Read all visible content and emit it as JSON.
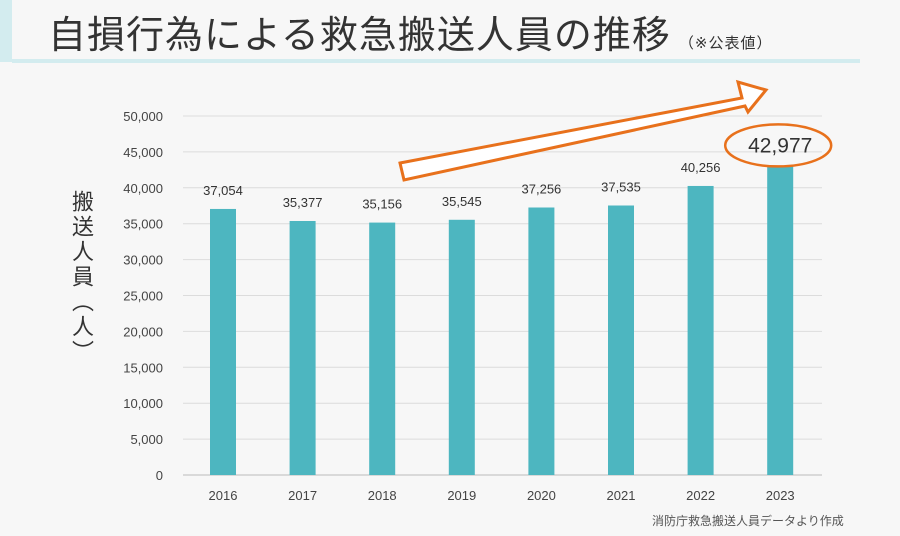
{
  "title": "自損行為による救急搬送人員の推移",
  "title_note": "（※公表値）",
  "source": "消防庁救急搬送人員データより作成",
  "chart_data": {
    "type": "bar",
    "categories": [
      "2016",
      "2017",
      "2018",
      "2019",
      "2020",
      "2021",
      "2022",
      "2023"
    ],
    "values": [
      37054,
      35377,
      35156,
      35545,
      37256,
      37535,
      40256,
      42977
    ],
    "data_labels": [
      "37,054",
      "35,377",
      "35,156",
      "35,545",
      "37,256",
      "37,535",
      "40,256",
      "42,977"
    ],
    "ylabel": "搬送人員（人）",
    "ylim": [
      0,
      50000
    ],
    "yticks": [
      "0",
      "5,000",
      "10,000",
      "15,000",
      "20,000",
      "25,000",
      "30,000",
      "35,000",
      "40,000",
      "45,000",
      "50,000"
    ],
    "grid": true,
    "bar_color": "#4db6c0",
    "annotation_color": "#e8711c",
    "highlight": "2023"
  }
}
